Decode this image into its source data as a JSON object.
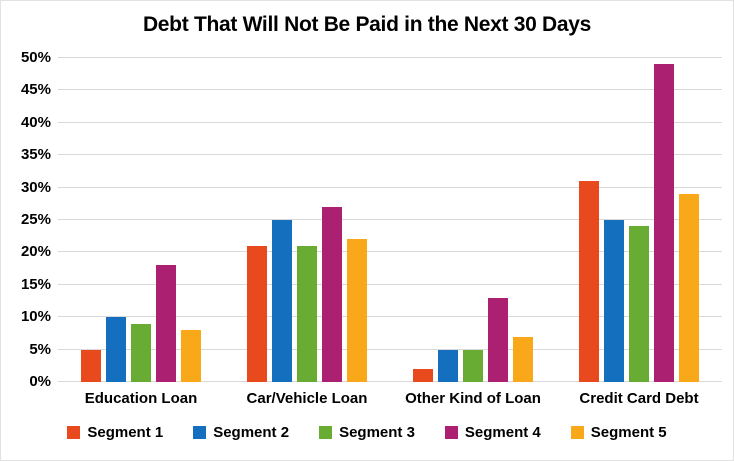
{
  "title": "Debt That Will Not Be Paid in the Next 30 Days",
  "chart_data": {
    "type": "bar",
    "title": "Debt That Will Not Be Paid in the Next 30 Days",
    "categories": [
      "Education Loan",
      "Car/Vehicle Loan",
      "Other Kind of Loan",
      "Credit Card Debt"
    ],
    "series": [
      {
        "name": "Segment 1",
        "color": "#E8491D",
        "values": [
          5,
          21,
          2,
          31
        ]
      },
      {
        "name": "Segment 2",
        "color": "#1470BE",
        "values": [
          10,
          25,
          5,
          25
        ]
      },
      {
        "name": "Segment 3",
        "color": "#69AC33",
        "values": [
          9,
          21,
          5,
          24
        ]
      },
      {
        "name": "Segment 4",
        "color": "#AC2071",
        "values": [
          18,
          27,
          13,
          49
        ]
      },
      {
        "name": "Segment 5",
        "color": "#F8A819",
        "values": [
          8,
          22,
          7,
          29
        ]
      }
    ],
    "xlabel": "",
    "ylabel": "",
    "ylim": [
      0,
      50
    ],
    "ytick_step": 5,
    "ytick_suffix": "%",
    "grid": true,
    "gridline_color": "#D9D9D9",
    "legend_position": "bottom",
    "text_color": "#000000"
  }
}
